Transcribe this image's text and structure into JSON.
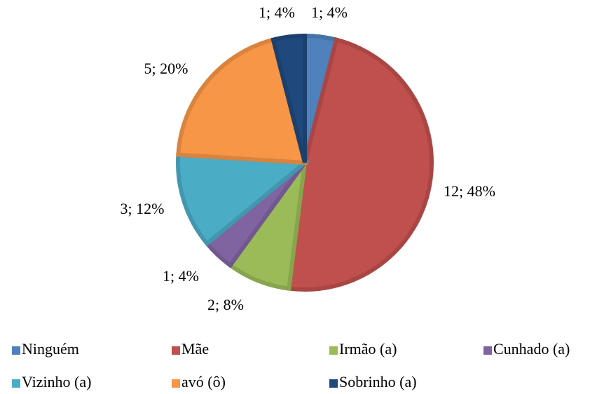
{
  "chart_data": {
    "type": "pie",
    "categories": [
      "Ninguém",
      "Mãe",
      "Irmão (a)",
      "Cunhado (a)",
      "Vizinho (a)",
      "avó (ô)",
      "Sobrinho (a)"
    ],
    "values": [
      1,
      12,
      2,
      1,
      3,
      5,
      1
    ],
    "value_labels": [
      "1; 4%",
      "12; 48%",
      "2; 8%",
      "1; 4%",
      "3; 12%",
      "5; 20%",
      "1; 4%"
    ],
    "colors": [
      "#4f81bd",
      "#c0504d",
      "#9bbb59",
      "#8064a2",
      "#4bacc6",
      "#f79646",
      "#1f497d"
    ],
    "legend": "bottom"
  }
}
